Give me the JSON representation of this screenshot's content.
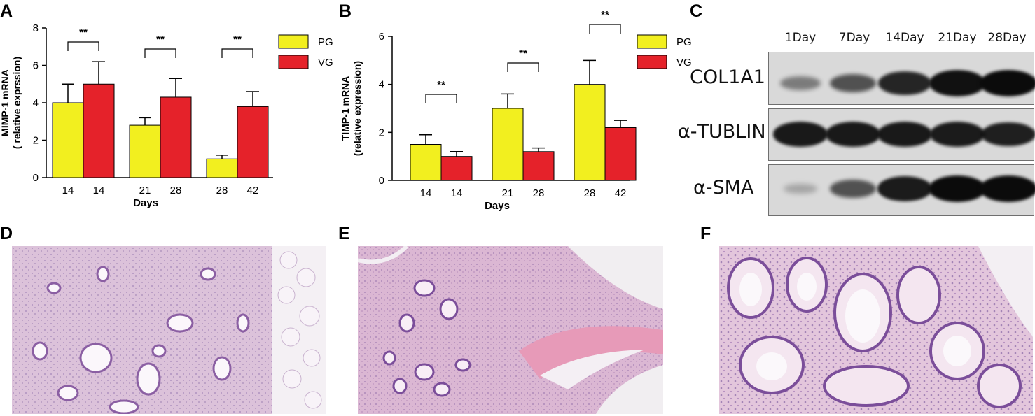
{
  "panels": {
    "a": "A",
    "b": "B",
    "c": "C",
    "d": "D",
    "e": "E",
    "f": "F"
  },
  "colors": {
    "PG": "#f2ef1f",
    "VG": "#e5222a"
  },
  "chart_data": [
    {
      "type": "bar",
      "panel": "A",
      "ylabel_lines": [
        "MIMP-1 mRNA",
        "( relative exprssion)"
      ],
      "xlabel": "Days",
      "ylim": [
        0,
        8
      ],
      "yticks": [
        0,
        2,
        4,
        6,
        8
      ],
      "groups": [
        {
          "pg_x": "14",
          "vg_x": "14",
          "sig": "**"
        },
        {
          "pg_x": "21",
          "vg_x": "28",
          "sig": "**"
        },
        {
          "pg_x": "28",
          "vg_x": "42",
          "sig": "**"
        }
      ],
      "series": [
        {
          "name": "PG",
          "values": [
            4.0,
            2.8,
            1.0
          ],
          "errors": [
            1.0,
            0.4,
            0.2
          ]
        },
        {
          "name": "VG",
          "values": [
            5.0,
            4.3,
            3.8
          ],
          "errors": [
            1.2,
            1.0,
            0.8
          ]
        }
      ],
      "legend": "top-right"
    },
    {
      "type": "bar",
      "panel": "B",
      "ylabel_lines": [
        "TIMP-1 mRNA",
        "(relative expression)"
      ],
      "xlabel": "Days",
      "ylim": [
        0,
        6
      ],
      "yticks": [
        0,
        2,
        4,
        6
      ],
      "groups": [
        {
          "pg_x": "14",
          "vg_x": "14",
          "sig": "**"
        },
        {
          "pg_x": "21",
          "vg_x": "28",
          "sig": "**"
        },
        {
          "pg_x": "28",
          "vg_x": "42",
          "sig": "**"
        }
      ],
      "series": [
        {
          "name": "PG",
          "values": [
            1.5,
            3.0,
            4.0
          ],
          "errors": [
            0.4,
            0.6,
            1.0
          ]
        },
        {
          "name": "VG",
          "values": [
            1.0,
            1.2,
            2.2
          ],
          "errors": [
            0.2,
            0.15,
            0.3
          ]
        }
      ],
      "legend": "top-right"
    }
  ],
  "western_blot": {
    "days": [
      "1Day",
      "7Day",
      "14Day",
      "21Day",
      "28Day"
    ],
    "proteins": [
      {
        "label": "COL1A1",
        "intensity": [
          0.35,
          0.6,
          0.85,
          0.97,
          1.0
        ]
      },
      {
        "label": "α-TUBLIN",
        "intensity": [
          0.92,
          0.92,
          0.92,
          0.9,
          0.88
        ]
      },
      {
        "label": "α-SMA",
        "intensity": [
          0.12,
          0.6,
          0.9,
          1.0,
          1.0
        ]
      }
    ]
  }
}
